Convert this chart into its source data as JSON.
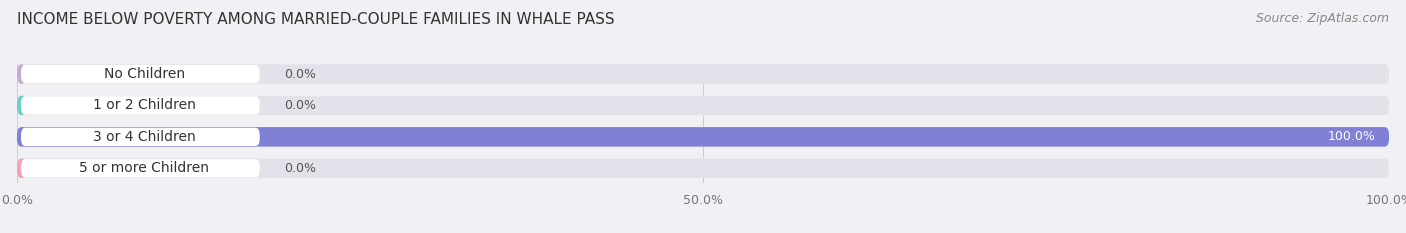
{
  "title": "INCOME BELOW POVERTY AMONG MARRIED-COUPLE FAMILIES IN WHALE PASS",
  "source": "Source: ZipAtlas.com",
  "categories": [
    "No Children",
    "1 or 2 Children",
    "3 or 4 Children",
    "5 or more Children"
  ],
  "values": [
    0.0,
    0.0,
    100.0,
    0.0
  ],
  "bar_colors": [
    "#c9a8d4",
    "#6ecfca",
    "#8080d4",
    "#f4a0b8"
  ],
  "xlim": [
    0,
    100
  ],
  "xticks": [
    0,
    50,
    100
  ],
  "xtick_labels": [
    "0.0%",
    "50.0%",
    "100.0%"
  ],
  "background_color": "#f0f0f5",
  "bar_bg_color": "#e2e2ea",
  "title_fontsize": 11,
  "source_fontsize": 9,
  "label_fontsize": 10,
  "value_fontsize": 9,
  "bar_height": 0.62,
  "fig_width": 14.06,
  "fig_height": 2.33
}
